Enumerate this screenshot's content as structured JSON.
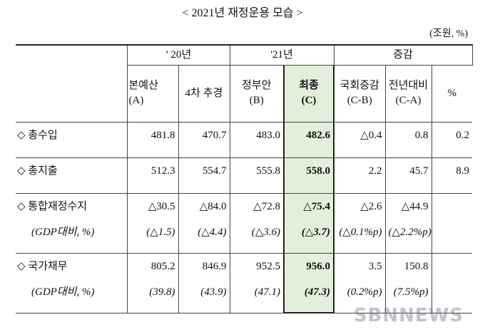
{
  "title": "< 2021년 재정운용 모습 >",
  "unit": "(조원, %)",
  "header": {
    "groups": [
      "’ 20년",
      "'21년",
      "증감"
    ],
    "columns": [
      "본예산\n(A)",
      "4차 추경",
      "정부안\n(B)",
      "최종\n(C)",
      "국회증감\n(C-B)",
      "전년대비\n(C-A)",
      "%"
    ]
  },
  "rows": [
    {
      "label": "◇ 총수입",
      "values": [
        "481.8",
        "470.7",
        "483.0",
        "482.6",
        "△0.4",
        "0.8",
        "0.2"
      ]
    },
    {
      "label": "◇ 총지출",
      "values": [
        "512.3",
        "554.7",
        "555.8",
        "558.0",
        "2.2",
        "45.7",
        "8.9"
      ]
    },
    {
      "label": "◇ 통합재정수지",
      "values": [
        "△30.5",
        "△84.0",
        "△72.8",
        "△75.4",
        "△2.6",
        "△44.9"
      ],
      "sub_label": "(GDP대비, %)",
      "sub_values": [
        "(△1.5)",
        "(△4.4)",
        "(△3.6)",
        "(△3.7)",
        "(△0.1%p)",
        "(△2.2%p)"
      ]
    },
    {
      "label": "◇ 국가채무",
      "values": [
        "805.2",
        "846.9",
        "952.5",
        "956.0",
        "3.5",
        "150.8"
      ],
      "sub_label": "(GDP대비, %)",
      "sub_values": [
        "(39.8)",
        "(43.9)",
        "(47.1)",
        "(47.3)",
        "(0.2%p)",
        "(7.5%p)"
      ]
    }
  ],
  "watermark": "SBNNEWS"
}
